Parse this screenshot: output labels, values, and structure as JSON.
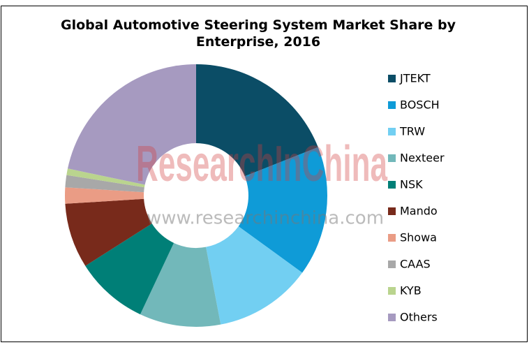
{
  "chart_data": {
    "type": "donut",
    "title": "Global Automotive Steering System Market Share by Enterprise, 2016",
    "watermark": "ResearchInChina",
    "watermark_url": "www.researchinchina.com",
    "categories": [
      "JTEKT",
      "BOSCH",
      "TRW",
      "Nexteer",
      "NSK",
      "Mando",
      "Showa",
      "CAAS",
      "KYB",
      "Others"
    ],
    "values": [
      19,
      16,
      12,
      10,
      9,
      8,
      2,
      1.5,
      0.8,
      21.7
    ],
    "colors": [
      "#0b4d66",
      "#0f9bd7",
      "#72cff2",
      "#72b8ba",
      "#007f77",
      "#782a1b",
      "#ea9c85",
      "#a8a8a8",
      "#bad48e",
      "#a69ac0"
    ],
    "legend": "right"
  }
}
